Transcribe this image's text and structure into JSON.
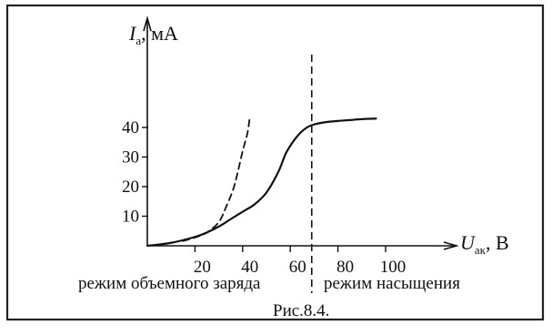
{
  "chart_data": {
    "type": "line",
    "ylabel_symbol": "I",
    "ylabel_subscript": "а",
    "ylabel_unit": ", мА",
    "xlabel_symbol": "U",
    "xlabel_subscript": "ак",
    "xlabel_unit": ", В",
    "x_ticks": [
      "20",
      "40",
      "60",
      "80",
      "100"
    ],
    "y_ticks": [
      "10",
      "20",
      "30",
      "40"
    ],
    "xlim": [
      0,
      110
    ],
    "ylim": [
      0,
      45
    ],
    "series": [
      {
        "style": "solid",
        "points": [
          [
            0,
            0
          ],
          [
            10,
            1
          ],
          [
            20,
            3
          ],
          [
            25,
            4.5
          ],
          [
            30,
            6.5
          ],
          [
            35,
            9
          ],
          [
            40,
            11.5
          ],
          [
            45,
            14
          ],
          [
            50,
            18
          ],
          [
            55,
            25
          ],
          [
            58,
            31
          ],
          [
            61,
            35
          ],
          [
            64,
            38
          ],
          [
            67,
            40
          ],
          [
            70,
            41
          ],
          [
            75,
            41.8
          ],
          [
            80,
            42.2
          ],
          [
            85,
            42.5
          ],
          [
            90,
            42.8
          ],
          [
            96,
            43
          ]
        ]
      },
      {
        "style": "dashed",
        "points": [
          [
            15,
            1.6
          ],
          [
            20,
            2.8
          ],
          [
            25,
            4.5
          ],
          [
            30,
            8
          ],
          [
            33,
            13
          ],
          [
            36,
            19
          ],
          [
            38,
            25
          ],
          [
            40,
            32
          ],
          [
            42,
            38
          ],
          [
            43,
            43.5
          ]
        ]
      }
    ],
    "divider_x": 69,
    "region_left_label": "режим объемного заряда",
    "region_right_label": "режим насыщения",
    "caption": "Рис.8.4.",
    "grid": false,
    "legend": "none"
  }
}
